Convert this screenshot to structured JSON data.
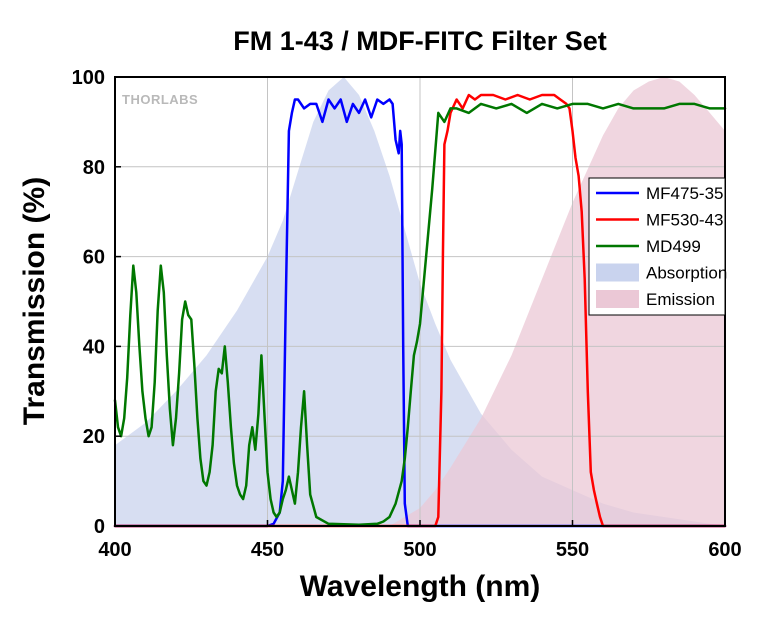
{
  "chart_data": {
    "type": "line",
    "title": "FM 1-43 / MDF-FITC Filter Set",
    "xlabel": "Wavelength (nm)",
    "ylabel": "Transmission (%)",
    "xlim": [
      400,
      600
    ],
    "ylim": [
      0,
      100
    ],
    "x_ticks": [
      400,
      450,
      500,
      550,
      600
    ],
    "y_ticks": [
      0,
      20,
      40,
      60,
      80,
      100
    ],
    "grid": true,
    "legend_position": "right",
    "watermark": "THORLABS",
    "series": [
      {
        "name": "MF475-35",
        "kind": "line",
        "color": "#0000ff",
        "x": [
          400,
          450,
          452,
          454,
          455,
          456,
          457,
          458,
          459,
          460,
          462,
          464,
          466,
          468,
          470,
          472,
          474,
          476,
          478,
          480,
          482,
          484,
          486,
          488,
          490,
          491,
          492,
          493,
          493.5,
          494,
          494.5,
          495,
          496,
          600
        ],
        "y": [
          0,
          0,
          0.5,
          3,
          10,
          50,
          88,
          92,
          95,
          95,
          93,
          94,
          94,
          90,
          95,
          93,
          95,
          90,
          94,
          92,
          95,
          91,
          95,
          94,
          95,
          94,
          86,
          83,
          88,
          85,
          40,
          5,
          0,
          0
        ]
      },
      {
        "name": "MF530-43",
        "kind": "line",
        "color": "#ff0000",
        "x": [
          400,
          505,
          506,
          507,
          507.5,
          508,
          509,
          510,
          512,
          514,
          516,
          518,
          520,
          524,
          528,
          532,
          536,
          540,
          544,
          546,
          548,
          549,
          550,
          551,
          552,
          553,
          554,
          555,
          556,
          557,
          558,
          559,
          560,
          600
        ],
        "y": [
          0,
          0,
          2,
          30,
          60,
          85,
          88,
          92,
          95,
          93,
          96,
          95,
          96,
          96,
          95,
          96,
          95,
          96,
          96,
          95,
          94,
          93,
          88,
          82,
          78,
          70,
          55,
          30,
          12,
          8,
          5,
          2,
          0,
          0
        ]
      },
      {
        "name": "MD499",
        "kind": "line",
        "color": "#007700",
        "x": [
          400,
          401,
          402,
          403,
          404,
          405,
          406,
          407,
          408,
          409,
          410,
          411,
          412,
          413,
          414,
          415,
          416,
          417,
          418,
          419,
          420,
          421,
          422,
          423,
          424,
          425,
          426,
          427,
          428,
          429,
          430,
          431,
          432,
          433,
          434,
          435,
          436,
          437,
          438,
          439,
          440,
          441,
          442,
          443,
          444,
          445,
          446,
          447,
          448,
          449,
          450,
          451,
          452,
          453,
          454,
          455,
          456,
          457,
          458,
          459,
          460,
          461,
          462,
          463,
          464,
          466,
          470,
          480,
          486,
          488,
          490,
          492,
          494,
          495,
          496,
          497,
          498,
          499,
          500,
          502,
          504,
          506,
          508,
          510,
          512,
          516,
          520,
          525,
          530,
          535,
          540,
          545,
          550,
          555,
          560,
          565,
          570,
          575,
          580,
          585,
          590,
          595,
          600
        ],
        "y": [
          28,
          22,
          20,
          24,
          33,
          47,
          58,
          52,
          40,
          30,
          24,
          20,
          22,
          32,
          48,
          58,
          52,
          38,
          26,
          18,
          24,
          34,
          46,
          50,
          47,
          46,
          36,
          24,
          15,
          10,
          9,
          12,
          18,
          30,
          35,
          34,
          40,
          32,
          22,
          14,
          9,
          7,
          6,
          9,
          18,
          22,
          17,
          25,
          38,
          25,
          12,
          6,
          3,
          2,
          3,
          6,
          8,
          11,
          8,
          5,
          12,
          22,
          30,
          18,
          7,
          2,
          0.5,
          0.3,
          0.5,
          1,
          2,
          5,
          10,
          15,
          22,
          30,
          38,
          41,
          45,
          60,
          75,
          92,
          90,
          93,
          93,
          92,
          94,
          93,
          94,
          92,
          94,
          93,
          94,
          94,
          93,
          94,
          93,
          93,
          93,
          94,
          94,
          93,
          93
        ]
      },
      {
        "name": "Absorption",
        "kind": "area",
        "color": "#c9d3ee",
        "x": [
          400,
          410,
          420,
          430,
          440,
          450,
          455,
          460,
          465,
          470,
          475,
          480,
          485,
          490,
          495,
          500,
          505,
          510,
          520,
          530,
          540,
          550,
          560,
          570,
          580,
          590,
          600
        ],
        "y": [
          18,
          23,
          30,
          38,
          48,
          60,
          68,
          79,
          90,
          97,
          100,
          96,
          88,
          78,
          66,
          54,
          45,
          37,
          25,
          17,
          11,
          8,
          5,
          3,
          2,
          1,
          0
        ]
      },
      {
        "name": "Emission",
        "kind": "area",
        "color": "#ebc8d6",
        "x": [
          400,
          490,
          500,
          505,
          510,
          520,
          530,
          540,
          550,
          560,
          565,
          570,
          575,
          580,
          585,
          590,
          595,
          600
        ],
        "y": [
          0,
          0,
          4,
          8,
          13,
          24,
          38,
          55,
          72,
          87,
          93,
          97,
          99,
          100,
          99,
          96,
          92,
          88
        ]
      }
    ]
  }
}
